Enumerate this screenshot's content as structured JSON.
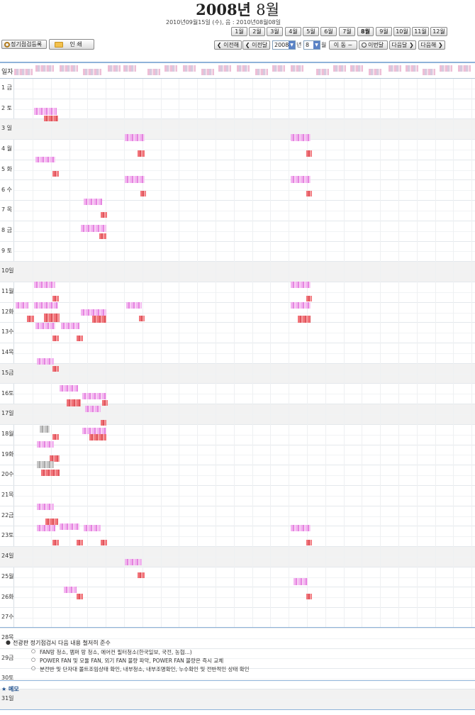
{
  "header": {
    "year_month": "2008년",
    "month": "8월",
    "subtitle": "2010년09월15일 (수), 음 : 2010년08월08일"
  },
  "months": [
    "1월",
    "2월",
    "3월",
    "4월",
    "5월",
    "6월",
    "7월",
    "8월",
    "9월",
    "10월",
    "11월",
    "12월"
  ],
  "toolbar": {
    "register_label": "정기점검등록",
    "print_label": "인 쇄",
    "prev_year": "이전해",
    "prev_month": "이전달",
    "year_value": "2008",
    "year_suffix": "년",
    "month_value": "8",
    "month_suffix": "월",
    "go_label": "이 동 ~",
    "this_month": "이번달",
    "next_month": "다음달",
    "next_year": "다음해"
  },
  "calendar": {
    "day_header": "일자",
    "days": [
      {
        "label": "1 금",
        "holiday": false
      },
      {
        "label": "2 토",
        "holiday": false
      },
      {
        "label": "3 일",
        "holiday": true
      },
      {
        "label": "4 월",
        "holiday": false
      },
      {
        "label": "5 화",
        "holiday": false
      },
      {
        "label": "6 수",
        "holiday": false
      },
      {
        "label": "7 목",
        "holiday": false
      },
      {
        "label": "8 금",
        "holiday": false
      },
      {
        "label": "9 토",
        "holiday": false
      },
      {
        "label": "10일",
        "holiday": true
      },
      {
        "label": "11월",
        "holiday": false
      },
      {
        "label": "12화",
        "holiday": false
      },
      {
        "label": "13수",
        "holiday": false
      },
      {
        "label": "14목",
        "holiday": false
      },
      {
        "label": "15금",
        "holiday": true
      },
      {
        "label": "16토",
        "holiday": false
      },
      {
        "label": "17일",
        "holiday": true
      },
      {
        "label": "18월",
        "holiday": false
      },
      {
        "label": "19화",
        "holiday": false
      },
      {
        "label": "20수",
        "holiday": false
      },
      {
        "label": "21목",
        "holiday": false
      },
      {
        "label": "22금",
        "holiday": false
      },
      {
        "label": "23토",
        "holiday": false
      },
      {
        "label": "24일",
        "holiday": true
      },
      {
        "label": "25월",
        "holiday": false
      },
      {
        "label": "26화",
        "holiday": false
      },
      {
        "label": "27수",
        "holiday": false
      },
      {
        "label": "28목",
        "holiday": false
      },
      {
        "label": "29금",
        "holiday": false
      },
      {
        "label": "30토",
        "holiday": false
      },
      {
        "label": "31일",
        "holiday": true
      }
    ]
  },
  "notes": {
    "main": "전광판 정기점검시 다음 내용 철저히 준수",
    "items": [
      "FAN망 청소, 맴퍼 망 청소, 에어컨 필터청소(한국일보, 국전, 농협...)",
      "POWER FAN 및 모듈 FAN, 외기 FAN 불량 파악, POWER FAN 불량은 즉시 교체",
      "분전반 및 단자대 볼트조임상태 확인, 내부청소, 내부조명확인, 누수확인 및 전반적인 상태 확인"
    ]
  },
  "memo_label": "메모",
  "colors": {
    "accent_blue": "#8fb3d9",
    "event_pink": "#e879e0",
    "event_red": "#e03c4a",
    "holiday_bg": "#f2f2f2"
  }
}
